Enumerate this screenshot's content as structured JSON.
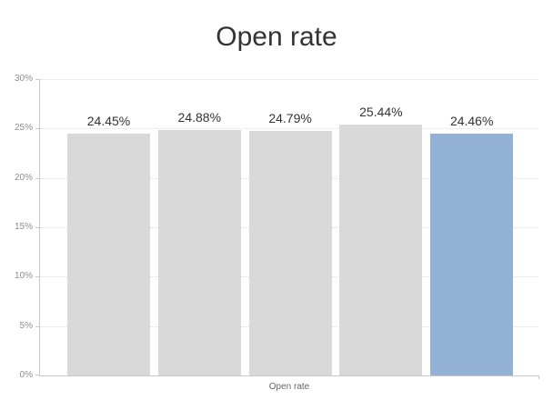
{
  "title": "Open rate",
  "chart_data": {
    "type": "bar",
    "title": "Open rate",
    "xlabel": "Open rate",
    "ylabel": "",
    "values": [
      24.45,
      24.88,
      24.79,
      25.44,
      24.46
    ],
    "value_labels": [
      "24.45%",
      "24.88%",
      "24.79%",
      "25.44%",
      "24.46%"
    ],
    "bar_colors": [
      "#d9d9d9",
      "#d9d9d9",
      "#d9d9d9",
      "#d9d9d9",
      "#92b1d5"
    ],
    "ylim": [
      0,
      30
    ],
    "yticks": [
      "0%",
      "5%",
      "10%",
      "15%",
      "20%",
      "25%",
      "30%"
    ],
    "grid": "horizontal-dotted",
    "legend": "none"
  },
  "colors": {
    "bar_default": "#d9d9d9",
    "bar_highlight": "#92b1d5",
    "axis_line": "#c9c9c9",
    "gridline": "#dedede",
    "title_text": "#333333",
    "value_label_text": "#333333",
    "y_tick_text": "#8e8e8e",
    "x_label_text": "#666666",
    "background": "#ffffff"
  }
}
